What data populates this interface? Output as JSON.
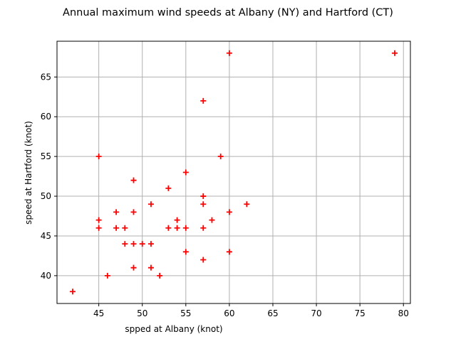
{
  "chart_data": {
    "type": "scatter",
    "title": "Annual maximum wind speeds at Albany (NY) and Hartford (CT)",
    "xlabel": "spped at Albany (knot)",
    "ylabel": "speed at Hartford (knot)",
    "xlim": [
      40.2,
      80.8
    ],
    "ylim": [
      36.5,
      69.5
    ],
    "xticks": [
      45,
      50,
      55,
      60,
      65,
      70,
      75,
      80
    ],
    "yticks": [
      40,
      45,
      50,
      55,
      60,
      65
    ],
    "grid": true,
    "marker": "+",
    "marker_color": "#ff0000",
    "grid_color": "#b0b0b0",
    "series": [
      {
        "x": [
          42,
          45,
          45,
          45,
          46,
          47,
          47,
          48,
          48,
          49,
          49,
          49,
          49,
          50,
          51,
          51,
          51,
          52,
          53,
          53,
          54,
          54,
          55,
          55,
          55,
          57,
          57,
          57,
          57,
          57,
          58,
          59,
          60,
          60,
          60,
          62,
          79
        ],
        "y": [
          38,
          55,
          47,
          46,
          40,
          48,
          46,
          46,
          44,
          52,
          48,
          44,
          41,
          44,
          49,
          44,
          41,
          40,
          51,
          46,
          47,
          46,
          53,
          46,
          43,
          62,
          50,
          49,
          46,
          42,
          47,
          55,
          68,
          48,
          43,
          49,
          68
        ]
      }
    ]
  }
}
